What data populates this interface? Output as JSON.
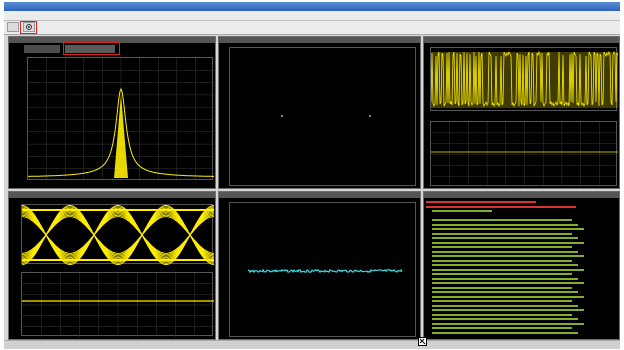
{
  "window": {
    "title": ""
  },
  "menu": {
    "items": [
      "",
      "",
      "",
      "",
      "",
      ""
    ]
  },
  "toolbar": {
    "active_tool": "circle-tool-icon"
  },
  "colors": {
    "trace_yellow": "#ffee00",
    "trace_cyan": "#3fd9e0",
    "grid": "#3a3a3a",
    "term_red": "#ff3c3c",
    "term_green": "#9acd32",
    "highlight": "#e0201a"
  },
  "panels": {
    "spectrum": {
      "header": "",
      "tabs": [
        "",
        ""
      ],
      "marker_label": "",
      "footer_left": "",
      "footer_right": ""
    },
    "constellation": {
      "header": ""
    },
    "waveform": {
      "header": ""
    },
    "eye": {
      "header": ""
    },
    "trace": {
      "header": ""
    },
    "terminal": {
      "header": ""
    }
  }
}
